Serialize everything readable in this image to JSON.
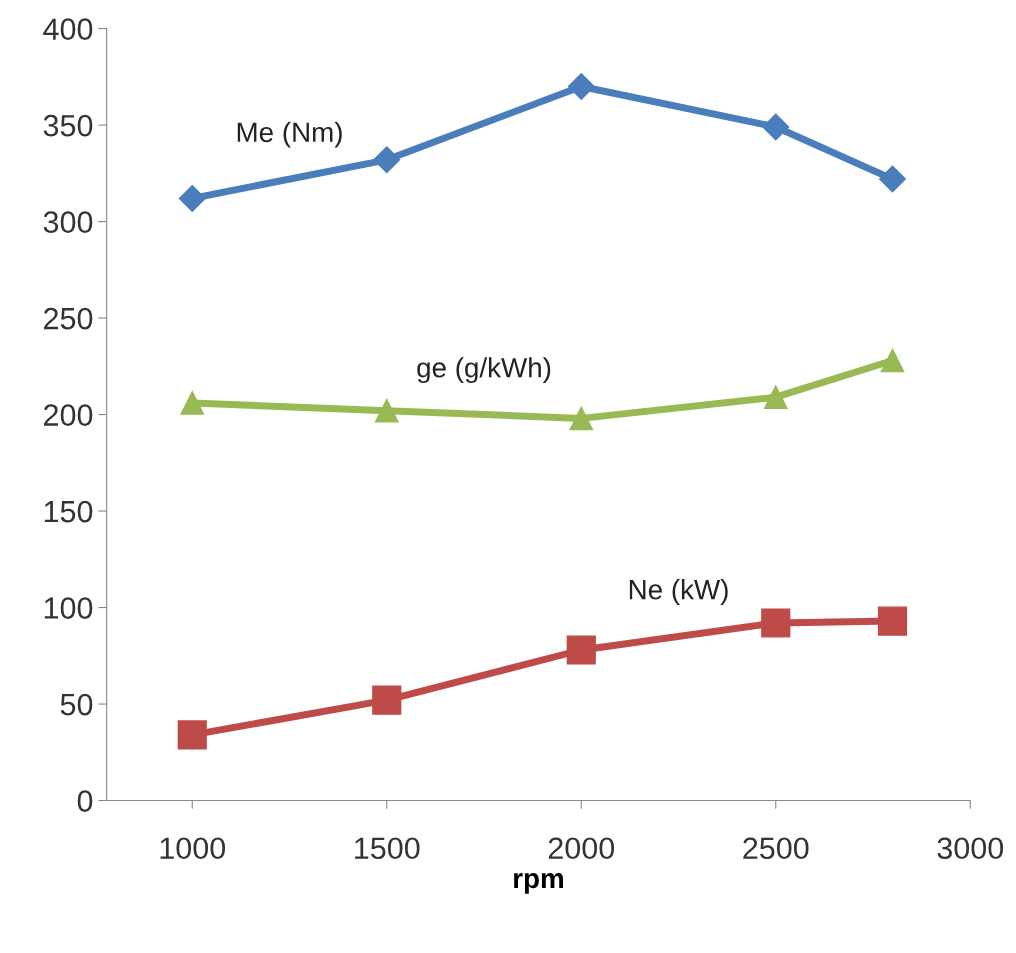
{
  "chart_data": {
    "type": "line",
    "xlabel": "rpm",
    "x": [
      1000,
      1500,
      2000,
      2500,
      2800
    ],
    "series": [
      {
        "name": "Me (Nm)",
        "color": "#4a7ebb",
        "marker": "diamond",
        "values": [
          312,
          332,
          370,
          349,
          322
        ]
      },
      {
        "name": "ge (g/kWh)",
        "color": "#98b954",
        "marker": "triangle",
        "values": [
          206,
          202,
          198,
          209,
          228
        ]
      },
      {
        "name": "Ne (kW)",
        "color": "#be4b48",
        "marker": "square",
        "values": [
          34,
          52,
          78,
          92,
          93
        ]
      }
    ],
    "xlim": [
      780,
      3000
    ],
    "xticks": [
      1000,
      1500,
      2000,
      2500,
      3000
    ],
    "ylim": [
      0,
      400
    ],
    "yticks": [
      0,
      50,
      100,
      150,
      200,
      250,
      300,
      350,
      400
    ],
    "grid": false,
    "legend": false,
    "line_style": "solid"
  }
}
